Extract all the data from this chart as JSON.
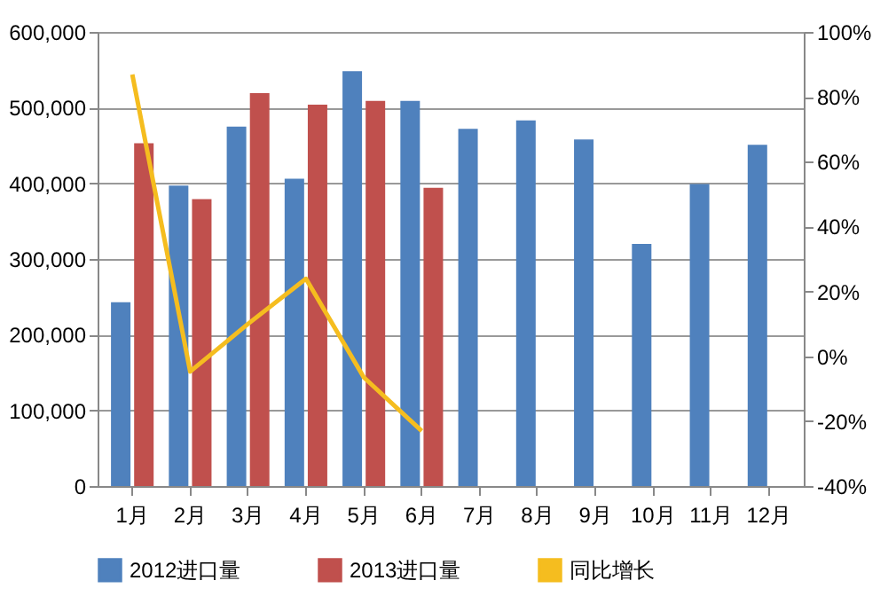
{
  "chart_data": {
    "type": "bar",
    "categories": [
      "1月",
      "2月",
      "3月",
      "4月",
      "5月",
      "6月",
      "7月",
      "8月",
      "9月",
      "10月",
      "11月",
      "12月"
    ],
    "series": [
      {
        "name": "2012进口量",
        "color": "#4f81bd",
        "values": [
          243000,
          397000,
          475000,
          406000,
          548000,
          509000,
          472000,
          483000,
          458000,
          320000,
          399000,
          451000
        ]
      },
      {
        "name": "2013进口量",
        "color": "#c0504d",
        "values": [
          453000,
          379000,
          519000,
          504000,
          509000,
          394000,
          null,
          null,
          null,
          null,
          null,
          null
        ]
      },
      {
        "name": "同比增长",
        "type": "line",
        "axis": "y2",
        "color": "#f5bd1f",
        "values": [
          86.9,
          -4.7,
          10,
          23.9,
          -6.5,
          -23,
          null,
          null,
          null,
          null,
          null,
          null
        ]
      }
    ],
    "ylim": [
      0,
      600000
    ],
    "yticks": [
      0,
      {
        "value": 100000,
        "label": "100,000"
      },
      {
        "value": 200000,
        "label": "200,000"
      },
      {
        "value": 300000,
        "label": "300,000"
      },
      {
        "value": 400000,
        "label": "400,000"
      },
      {
        "value": 500000,
        "label": "500,000"
      },
      {
        "value": 600000,
        "label": "600,000"
      }
    ],
    "y2lim": [
      -40,
      100
    ],
    "y2ticks": [
      {
        "value": -40,
        "label": "-40%"
      },
      {
        "value": -20,
        "label": "-20%"
      },
      {
        "value": 0,
        "label": "0%"
      },
      {
        "value": 20,
        "label": "20%"
      },
      {
        "value": 40,
        "label": "40%"
      },
      {
        "value": 60,
        "label": "60%"
      },
      {
        "value": 80,
        "label": "80%"
      },
      {
        "value": 100,
        "label": "100%"
      }
    ],
    "grid": "y",
    "legend": "bottom",
    "marker": "none"
  }
}
